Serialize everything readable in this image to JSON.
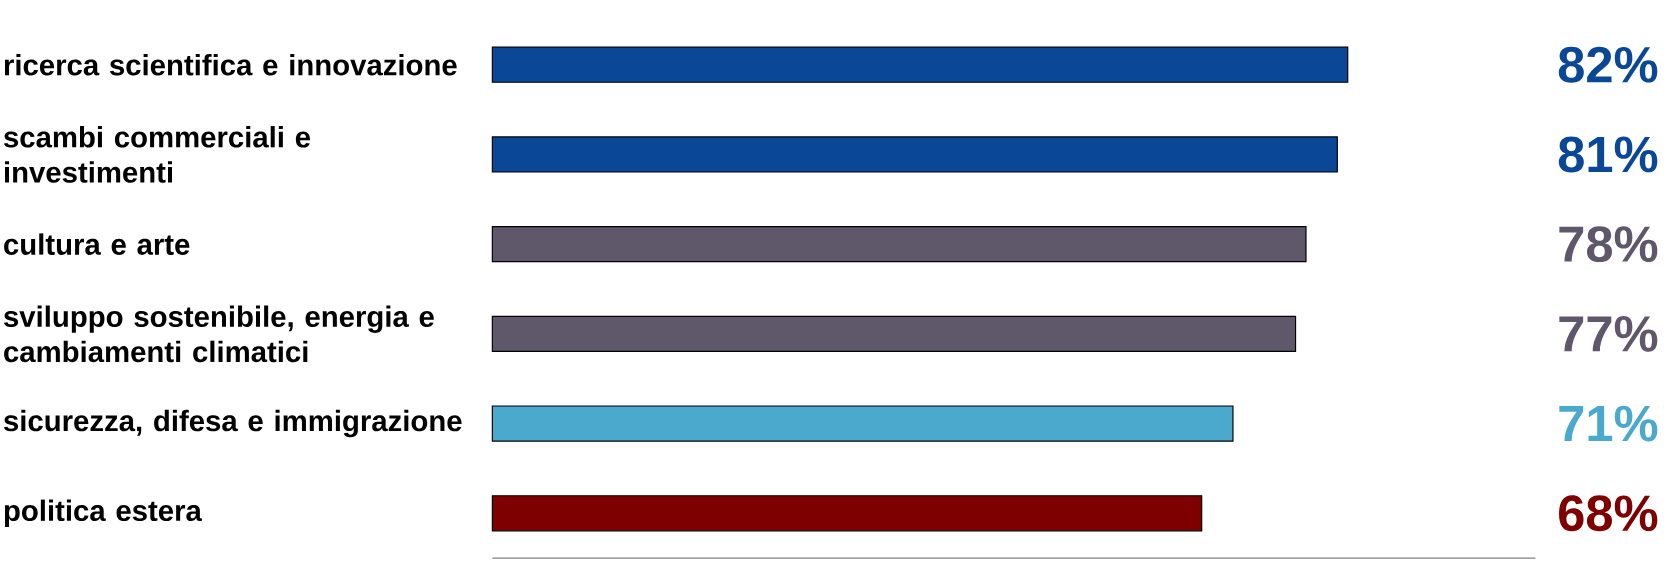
{
  "chart_data": {
    "type": "bar",
    "orientation": "horizontal",
    "categories": [
      "ricerca scientifica e innovazione",
      "scambi commerciali e investimenti",
      "cultura e arte",
      "sviluppo sostenibile, energia e cambiamenti climatici",
      "sicurezza, difesa e immigrazione",
      "politica estera"
    ],
    "values": [
      82,
      81,
      78,
      77,
      71,
      68
    ],
    "colors": [
      "#0b4797",
      "#0b4797",
      "#5f586b",
      "#5f586b",
      "#4aa9cc",
      "#7f0000"
    ],
    "value_labels": [
      "82%",
      "81%",
      "78%",
      "77%",
      "71%",
      "68%"
    ],
    "xlim": [
      0,
      100
    ],
    "tick_labels": "y"
  }
}
